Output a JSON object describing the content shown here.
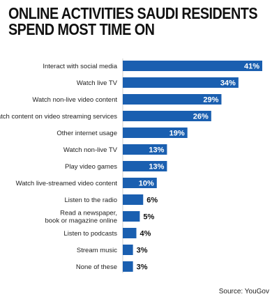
{
  "title": "ONLINE ACTIVITIES SAUDI RESIDENTS SPEND MOST TIME ON",
  "source": "Source: YouGov",
  "colors": {
    "bar": "#1a5fb0",
    "text": "#111111"
  },
  "chart_data": {
    "type": "bar",
    "orientation": "horizontal",
    "title": "ONLINE ACTIVITIES SAUDI RESIDENTS SPEND MOST TIME ON",
    "categories": [
      "Interact with social media",
      "Watch live TV",
      "Watch non-live video content",
      "Watch content on video streaming services",
      "Other internet usage",
      "Watch non-live TV",
      "Play video games",
      "Watch live-streamed video content",
      "Listen to the radio",
      "Read a newspaper, book or magazine online",
      "Listen to podcasts",
      "Stream music",
      "None of these"
    ],
    "category_lines": [
      [
        "Interact with social media"
      ],
      [
        "Watch live TV"
      ],
      [
        "Watch non-live video content"
      ],
      [
        "Watch content on video streaming services"
      ],
      [
        "Other internet usage"
      ],
      [
        "Watch non-live TV"
      ],
      [
        "Play video games"
      ],
      [
        "Watch live-streamed video content"
      ],
      [
        "Listen to the radio"
      ],
      [
        "Read a newspaper,",
        "book or magazine online"
      ],
      [
        "Listen to podcasts"
      ],
      [
        "Stream music"
      ],
      [
        "None of these"
      ]
    ],
    "values": [
      41,
      34,
      29,
      26,
      19,
      13,
      13,
      10,
      6,
      5,
      4,
      3,
      3
    ],
    "value_labels": [
      "41%",
      "34%",
      "29%",
      "26%",
      "19%",
      "13%",
      "13%",
      "10%",
      "6%",
      "5%",
      "4%",
      "3%",
      "3%"
    ],
    "unit": "%",
    "xlim": [
      0,
      41
    ],
    "grid": false,
    "legend": "none"
  }
}
